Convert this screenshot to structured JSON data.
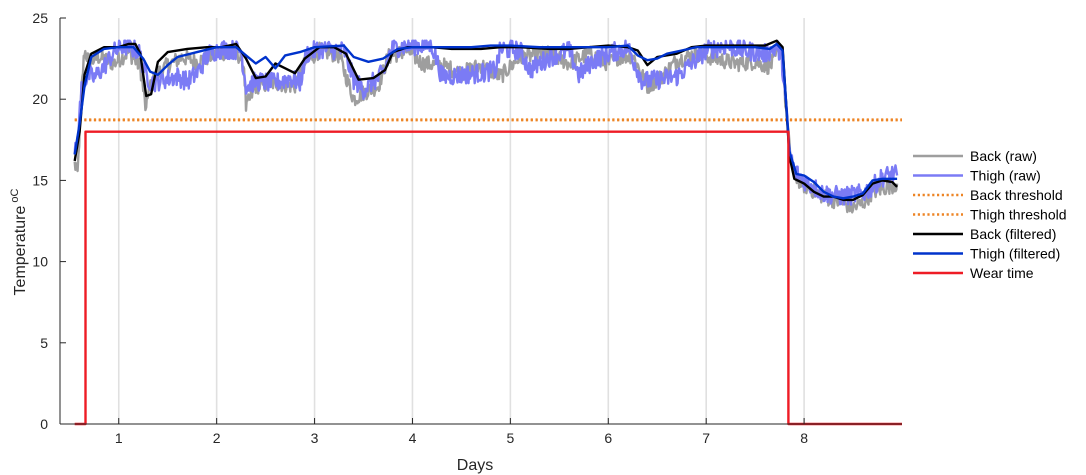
{
  "chart_data": {
    "type": "line",
    "xlabel": "Days",
    "ylabel": "Temperature",
    "ylabel_unit": "oC",
    "xlim": [
      0.4,
      9.0
    ],
    "ylim": [
      0,
      25
    ],
    "xticks": [
      1,
      2,
      3,
      4,
      5,
      6,
      7,
      8
    ],
    "yticks": [
      0,
      5,
      10,
      15,
      20,
      25
    ],
    "grid": "vertical",
    "legend_position": "outside-right",
    "series": [
      {
        "name": "Back (raw)",
        "color": "#9e9e9e",
        "style": "solid",
        "noise": 0.5,
        "points": [
          [
            0.55,
            16.0
          ],
          [
            0.58,
            15.4
          ],
          [
            0.62,
            20.5
          ],
          [
            0.65,
            23.0
          ],
          [
            0.7,
            22.3
          ],
          [
            0.8,
            22.6
          ],
          [
            0.95,
            22.2
          ],
          [
            1.1,
            22.9
          ],
          [
            1.22,
            22.0
          ],
          [
            1.28,
            19.2
          ],
          [
            1.3,
            20.5
          ],
          [
            1.38,
            21.5
          ],
          [
            1.5,
            22.1
          ],
          [
            1.65,
            22.6
          ],
          [
            1.8,
            22.3
          ],
          [
            2.0,
            22.8
          ],
          [
            2.2,
            23.0
          ],
          [
            2.28,
            22.0
          ],
          [
            2.3,
            19.5
          ],
          [
            2.4,
            20.8
          ],
          [
            2.6,
            21.0
          ],
          [
            2.8,
            20.8
          ],
          [
            2.9,
            22.2
          ],
          [
            3.05,
            23.0
          ],
          [
            3.25,
            22.7
          ],
          [
            3.4,
            20.0
          ],
          [
            3.5,
            20.4
          ],
          [
            3.65,
            20.8
          ],
          [
            3.75,
            22.6
          ],
          [
            3.95,
            23.0
          ],
          [
            4.1,
            22.2
          ],
          [
            4.3,
            22.1
          ],
          [
            4.5,
            21.6
          ],
          [
            4.7,
            22.1
          ],
          [
            4.9,
            21.4
          ],
          [
            5.1,
            22.6
          ],
          [
            5.4,
            22.8
          ],
          [
            5.6,
            22.2
          ],
          [
            5.8,
            22.8
          ],
          [
            6.0,
            22.2
          ],
          [
            6.1,
            22.6
          ],
          [
            6.25,
            22.7
          ],
          [
            6.4,
            20.8
          ],
          [
            6.55,
            21.4
          ],
          [
            6.7,
            22.4
          ],
          [
            6.9,
            22.8
          ],
          [
            7.1,
            22.5
          ],
          [
            7.3,
            22.2
          ],
          [
            7.5,
            22.3
          ],
          [
            7.65,
            22.0
          ],
          [
            7.75,
            23.0
          ],
          [
            7.79,
            22.3
          ],
          [
            7.8,
            20.5
          ],
          [
            7.85,
            17.0
          ],
          [
            7.9,
            15.3
          ],
          [
            8.0,
            14.7
          ],
          [
            8.2,
            14.0
          ],
          [
            8.4,
            13.6
          ],
          [
            8.5,
            13.3
          ],
          [
            8.6,
            13.6
          ],
          [
            8.7,
            14.3
          ],
          [
            8.8,
            14.5
          ],
          [
            8.95,
            14.8
          ]
        ]
      },
      {
        "name": "Thigh (raw)",
        "color": "#7b7bf5",
        "style": "solid",
        "noise": 0.6,
        "points": [
          [
            0.55,
            16.5
          ],
          [
            0.58,
            17.5
          ],
          [
            0.62,
            20.7
          ],
          [
            0.66,
            21.2
          ],
          [
            0.7,
            21.5
          ],
          [
            0.75,
            21.3
          ],
          [
            0.85,
            22.0
          ],
          [
            0.95,
            22.9
          ],
          [
            1.05,
            23.3
          ],
          [
            1.2,
            23.0
          ],
          [
            1.28,
            21.5
          ],
          [
            1.33,
            21.0
          ],
          [
            1.45,
            21.2
          ],
          [
            1.6,
            21.4
          ],
          [
            1.7,
            21.1
          ],
          [
            1.8,
            21.6
          ],
          [
            1.92,
            22.8
          ],
          [
            2.05,
            23.1
          ],
          [
            2.25,
            23.0
          ],
          [
            2.3,
            20.8
          ],
          [
            2.4,
            21.1
          ],
          [
            2.6,
            21.0
          ],
          [
            2.75,
            21.3
          ],
          [
            2.85,
            21.0
          ],
          [
            2.92,
            22.8
          ],
          [
            3.05,
            23.1
          ],
          [
            3.3,
            23.0
          ],
          [
            3.4,
            21.2
          ],
          [
            3.5,
            20.6
          ],
          [
            3.65,
            21.3
          ],
          [
            3.72,
            21.8
          ],
          [
            3.78,
            23.1
          ],
          [
            3.95,
            23.3
          ],
          [
            4.2,
            23.3
          ],
          [
            4.3,
            21.4
          ],
          [
            4.5,
            21.5
          ],
          [
            4.7,
            21.6
          ],
          [
            4.85,
            21.8
          ],
          [
            4.9,
            23.1
          ],
          [
            5.1,
            23.0
          ],
          [
            5.2,
            21.8
          ],
          [
            5.4,
            22.6
          ],
          [
            5.6,
            23.0
          ],
          [
            5.7,
            21.5
          ],
          [
            5.85,
            22.4
          ],
          [
            6.0,
            22.8
          ],
          [
            6.2,
            23.2
          ],
          [
            6.35,
            21.1
          ],
          [
            6.5,
            21.2
          ],
          [
            6.7,
            21.4
          ],
          [
            6.85,
            22.2
          ],
          [
            7.0,
            23.0
          ],
          [
            7.2,
            23.3
          ],
          [
            7.4,
            23.0
          ],
          [
            7.6,
            22.8
          ],
          [
            7.72,
            23.2
          ],
          [
            7.77,
            22.6
          ],
          [
            7.8,
            20.6
          ],
          [
            7.85,
            16.8
          ],
          [
            7.9,
            15.6
          ],
          [
            8.0,
            15.0
          ],
          [
            8.2,
            14.2
          ],
          [
            8.4,
            14.0
          ],
          [
            8.6,
            14.2
          ],
          [
            8.7,
            14.6
          ],
          [
            8.8,
            15.2
          ],
          [
            8.9,
            15.4
          ],
          [
            8.95,
            15.3
          ]
        ]
      },
      {
        "name": "Back threshold",
        "color": "#ed8424",
        "style": "dotted",
        "noise": 0,
        "points": [
          [
            0.55,
            18.75
          ],
          [
            9.0,
            18.75
          ]
        ]
      },
      {
        "name": "Thigh threshold",
        "color": "#ed8424",
        "style": "dotted",
        "noise": 0,
        "points": [
          [
            0.55,
            18.7
          ],
          [
            9.0,
            18.7
          ]
        ]
      },
      {
        "name": "Back (filtered)",
        "color": "#000000",
        "style": "solid",
        "noise": 0,
        "points": [
          [
            0.55,
            16.2
          ],
          [
            0.6,
            18.0
          ],
          [
            0.65,
            21.5
          ],
          [
            0.72,
            22.8
          ],
          [
            0.85,
            23.2
          ],
          [
            1.0,
            23.2
          ],
          [
            1.1,
            23.4
          ],
          [
            1.17,
            23.4
          ],
          [
            1.22,
            22.8
          ],
          [
            1.28,
            20.2
          ],
          [
            1.33,
            20.3
          ],
          [
            1.4,
            22.3
          ],
          [
            1.5,
            22.9
          ],
          [
            1.7,
            23.1
          ],
          [
            1.9,
            23.2
          ],
          [
            2.05,
            23.2
          ],
          [
            2.2,
            23.4
          ],
          [
            2.3,
            22.5
          ],
          [
            2.4,
            21.3
          ],
          [
            2.5,
            21.4
          ],
          [
            2.6,
            22.2
          ],
          [
            2.7,
            21.9
          ],
          [
            2.8,
            21.6
          ],
          [
            2.9,
            22.5
          ],
          [
            3.05,
            23.2
          ],
          [
            3.2,
            23.2
          ],
          [
            3.32,
            22.8
          ],
          [
            3.45,
            21.2
          ],
          [
            3.6,
            21.3
          ],
          [
            3.72,
            21.8
          ],
          [
            3.8,
            22.9
          ],
          [
            3.95,
            23.2
          ],
          [
            4.2,
            23.2
          ],
          [
            4.4,
            23.1
          ],
          [
            4.7,
            23.1
          ],
          [
            4.9,
            23.2
          ],
          [
            5.1,
            23.2
          ],
          [
            5.4,
            23.1
          ],
          [
            5.6,
            23.1
          ],
          [
            5.8,
            23.2
          ],
          [
            6.0,
            23.3
          ],
          [
            6.2,
            23.2
          ],
          [
            6.3,
            23.0
          ],
          [
            6.4,
            22.1
          ],
          [
            6.5,
            22.6
          ],
          [
            6.7,
            22.8
          ],
          [
            6.85,
            23.2
          ],
          [
            7.0,
            23.3
          ],
          [
            7.2,
            23.3
          ],
          [
            7.45,
            23.3
          ],
          [
            7.6,
            23.3
          ],
          [
            7.72,
            23.6
          ],
          [
            7.78,
            23.2
          ],
          [
            7.85,
            16.5
          ],
          [
            7.9,
            15.1
          ],
          [
            8.0,
            14.8
          ],
          [
            8.1,
            14.3
          ],
          [
            8.2,
            14.0
          ],
          [
            8.3,
            14.0
          ],
          [
            8.4,
            13.8
          ],
          [
            8.5,
            13.8
          ],
          [
            8.6,
            14.1
          ],
          [
            8.7,
            14.8
          ],
          [
            8.8,
            15.0
          ],
          [
            8.9,
            14.9
          ],
          [
            8.95,
            14.6
          ]
        ]
      },
      {
        "name": "Thigh (filtered)",
        "color": "#0033cc",
        "style": "solid",
        "noise": 0,
        "points": [
          [
            0.55,
            16.6
          ],
          [
            0.6,
            18.5
          ],
          [
            0.65,
            20.8
          ],
          [
            0.72,
            22.6
          ],
          [
            0.85,
            23.1
          ],
          [
            1.0,
            23.2
          ],
          [
            1.15,
            23.2
          ],
          [
            1.25,
            22.5
          ],
          [
            1.32,
            21.7
          ],
          [
            1.4,
            21.5
          ],
          [
            1.5,
            22.1
          ],
          [
            1.6,
            22.6
          ],
          [
            1.8,
            22.9
          ],
          [
            2.0,
            23.2
          ],
          [
            2.2,
            23.2
          ],
          [
            2.3,
            22.7
          ],
          [
            2.4,
            22.2
          ],
          [
            2.5,
            22.6
          ],
          [
            2.6,
            21.9
          ],
          [
            2.7,
            22.7
          ],
          [
            2.85,
            22.9
          ],
          [
            3.0,
            23.2
          ],
          [
            3.3,
            23.3
          ],
          [
            3.4,
            22.6
          ],
          [
            3.55,
            22.3
          ],
          [
            3.7,
            22.5
          ],
          [
            3.85,
            23.1
          ],
          [
            4.0,
            23.2
          ],
          [
            4.3,
            23.2
          ],
          [
            4.6,
            23.2
          ],
          [
            4.8,
            23.3
          ],
          [
            5.0,
            23.3
          ],
          [
            5.3,
            23.2
          ],
          [
            5.6,
            23.2
          ],
          [
            5.8,
            23.2
          ],
          [
            6.0,
            23.2
          ],
          [
            6.2,
            23.3
          ],
          [
            6.3,
            22.7
          ],
          [
            6.4,
            22.4
          ],
          [
            6.5,
            22.5
          ],
          [
            6.6,
            22.8
          ],
          [
            6.75,
            23.0
          ],
          [
            6.9,
            23.2
          ],
          [
            7.2,
            23.2
          ],
          [
            7.5,
            23.2
          ],
          [
            7.65,
            23.1
          ],
          [
            7.72,
            23.4
          ],
          [
            7.78,
            23.0
          ],
          [
            7.85,
            16.8
          ],
          [
            7.92,
            15.4
          ],
          [
            8.0,
            15.3
          ],
          [
            8.1,
            14.9
          ],
          [
            8.2,
            14.3
          ],
          [
            8.3,
            14.0
          ],
          [
            8.4,
            13.9
          ],
          [
            8.5,
            14.0
          ],
          [
            8.6,
            14.2
          ],
          [
            8.7,
            15.0
          ],
          [
            8.8,
            15.1
          ],
          [
            8.9,
            15.1
          ],
          [
            8.95,
            15.1
          ]
        ]
      },
      {
        "name": "Wear time",
        "color": "#ee1c25",
        "style": "solid",
        "noise": 0,
        "points": [
          [
            0.55,
            0
          ],
          [
            0.66,
            0
          ],
          [
            0.66,
            18
          ],
          [
            7.84,
            18
          ],
          [
            7.84,
            0
          ],
          [
            9.0,
            0
          ]
        ]
      }
    ]
  }
}
